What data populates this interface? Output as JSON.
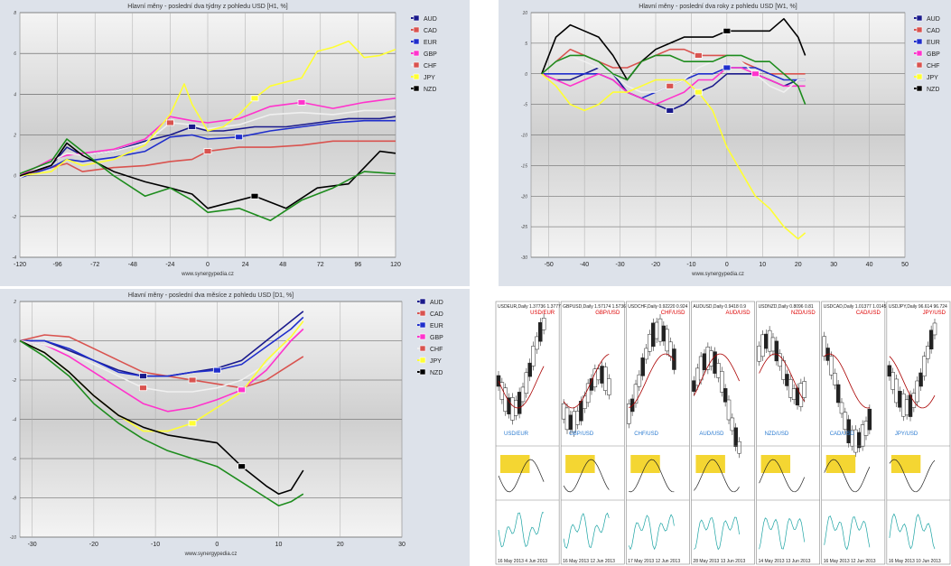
{
  "colors": {
    "AUD": "#1a1a8c",
    "CAD": "#d9534f",
    "EUR": "#1f2ecc",
    "GBP": "#ff33cc",
    "CHF": "#f0f0f0",
    "JPY": "#ffff33",
    "NZD": "#000000",
    "CHF_alt": "#e8e8e8",
    "green": "#1d8c1d"
  },
  "legend": [
    {
      "code": "AUD",
      "icon": "australia-flag-icon"
    },
    {
      "code": "CAD",
      "icon": "canada-flag-icon"
    },
    {
      "code": "EUR",
      "icon": "eu-flag-icon"
    },
    {
      "code": "GBP",
      "icon": "uk-flag-icon"
    },
    {
      "code": "CHF",
      "icon": "swiss-flag-icon"
    },
    {
      "code": "JPY",
      "icon": "japan-flag-icon"
    },
    {
      "code": "NZD",
      "icon": "new-zealand-flag-icon"
    }
  ],
  "credit": "www.synergypedia.cz",
  "chart_data": [
    {
      "type": "line",
      "title": "Hlavní měny - poslední dva týdny z pohledu USD [H1, %]",
      "xlim": [
        -120,
        120
      ],
      "xticks": [
        -120,
        -96,
        -72,
        -48,
        -24,
        0,
        24,
        48,
        72,
        96,
        120
      ],
      "ylim": [
        -4,
        8
      ],
      "yticks": [
        -4,
        -2,
        0,
        2,
        4,
        6,
        8
      ],
      "grid": true,
      "series": [
        {
          "name": "AUD",
          "color": "#1a1a8c",
          "x": [
            -120,
            -100,
            -90,
            -80,
            -60,
            -40,
            -24,
            -10,
            0,
            10,
            30,
            50,
            70,
            90,
            110,
            120
          ],
          "y": [
            0,
            0.5,
            1.4,
            1,
            1.2,
            1.7,
            2,
            2.4,
            2.2,
            2.2,
            2.4,
            2.4,
            2.6,
            2.8,
            2.8,
            2.9
          ]
        },
        {
          "name": "CAD",
          "color": "#d9534f",
          "x": [
            -120,
            -100,
            -90,
            -80,
            -60,
            -40,
            -24,
            -10,
            0,
            20,
            40,
            60,
            80,
            100,
            120
          ],
          "y": [
            0,
            0.4,
            0.6,
            0.2,
            0.4,
            0.5,
            0.7,
            0.8,
            1.2,
            1.4,
            1.4,
            1.5,
            1.7,
            1.7,
            1.7
          ]
        },
        {
          "name": "EUR",
          "color": "#1f2ecc",
          "x": [
            -120,
            -100,
            -90,
            -80,
            -60,
            -40,
            -24,
            -10,
            0,
            20,
            40,
            60,
            80,
            100,
            120
          ],
          "y": [
            -0.1,
            0.4,
            0.8,
            0.7,
            0.9,
            1.2,
            1.9,
            2.0,
            1.8,
            1.9,
            2.2,
            2.4,
            2.6,
            2.7,
            2.7
          ]
        },
        {
          "name": "GBP",
          "color": "#ff33cc",
          "x": [
            -120,
            -100,
            -90,
            -80,
            -60,
            -40,
            -24,
            -10,
            0,
            20,
            40,
            60,
            80,
            100,
            120
          ],
          "y": [
            0,
            0.8,
            1,
            1.1,
            1.3,
            1.8,
            2.9,
            2.7,
            2.6,
            2.8,
            3.4,
            3.6,
            3.3,
            3.6,
            3.8
          ]
        },
        {
          "name": "CHF",
          "color": "#f0f0f0",
          "x": [
            -120,
            -100,
            -90,
            -80,
            -60,
            -40,
            -24,
            -10,
            0,
            20,
            40,
            60,
            80,
            100,
            120
          ],
          "y": [
            -0.1,
            0.7,
            1.1,
            1,
            1.2,
            1.6,
            2.6,
            2.5,
            2.3,
            2.5,
            3.0,
            3.1,
            3.0,
            3.2,
            3.2
          ]
        },
        {
          "name": "JPY",
          "color": "#ffff33",
          "x": [
            -120,
            -100,
            -90,
            -80,
            -60,
            -40,
            -24,
            -15,
            -10,
            0,
            10,
            20,
            30,
            40,
            50,
            60,
            70,
            80,
            90,
            100,
            110,
            120
          ],
          "y": [
            0,
            0.2,
            0.8,
            0.5,
            0.8,
            1.5,
            3,
            4.5,
            3.5,
            2.2,
            2.4,
            3,
            3.8,
            4.4,
            4.6,
            4.8,
            6.1,
            6.3,
            6.6,
            5.8,
            5.9,
            6.2
          ]
        },
        {
          "name": "NZD",
          "color": "#000000",
          "x": [
            -120,
            -100,
            -90,
            -80,
            -60,
            -40,
            -24,
            -10,
            0,
            10,
            30,
            50,
            70,
            90,
            110,
            120
          ],
          "y": [
            0,
            0.5,
            1.6,
            1.0,
            0.2,
            -0.3,
            -0.6,
            -0.9,
            -1.6,
            -1.4,
            -1.0,
            -1.6,
            -0.6,
            -0.4,
            1.2,
            1.1
          ]
        },
        {
          "name": "",
          "color": "#1d8c1d",
          "x": [
            -120,
            -100,
            -90,
            -80,
            -60,
            -40,
            -24,
            -10,
            0,
            20,
            40,
            60,
            80,
            100,
            120
          ],
          "y": [
            0.1,
            0.7,
            1.8,
            1.2,
            0,
            -1,
            -0.6,
            -1.2,
            -1.8,
            -1.6,
            -2.2,
            -1.2,
            -0.6,
            0.2,
            0.1
          ]
        }
      ]
    },
    {
      "type": "line",
      "title": "Hlavní měny - poslední dva roky z pohledu USD [W1, %]",
      "xlim": [
        -55,
        50
      ],
      "xticks": [
        -50,
        -40,
        -30,
        -20,
        -10,
        0,
        10,
        20,
        30,
        40,
        50
      ],
      "ylim": [
        -30,
        10
      ],
      "yticks": [
        -30,
        -25,
        -20,
        -15,
        -10,
        -5,
        0,
        5,
        10
      ],
      "grid": true,
      "series": [
        {
          "name": "AUD",
          "color": "#1a1a8c",
          "x": [
            -52,
            -48,
            -44,
            -40,
            -36,
            -32,
            -28,
            -24,
            -20,
            -16,
            -12,
            -8,
            -4,
            0,
            4,
            8,
            12,
            16,
            20,
            22
          ],
          "y": [
            0,
            -1,
            -1,
            0,
            1,
            0,
            -3,
            -4,
            -5,
            -6,
            -5,
            -3,
            -2,
            0,
            0,
            0,
            -1,
            -2,
            -1,
            -1
          ]
        },
        {
          "name": "CAD",
          "color": "#d9534f",
          "x": [
            -52,
            -48,
            -44,
            -40,
            -36,
            -32,
            -28,
            -24,
            -20,
            -16,
            -12,
            -8,
            -4,
            0,
            4,
            8,
            12,
            16,
            20,
            22
          ],
          "y": [
            0,
            2,
            4,
            3,
            2,
            1,
            1,
            2,
            3,
            4,
            4,
            3,
            3,
            3,
            2,
            1,
            0,
            0,
            0,
            0
          ]
        },
        {
          "name": "EUR",
          "color": "#1f2ecc",
          "x": [
            -52,
            -48,
            -44,
            -40,
            -36,
            -32,
            -28,
            -24,
            -20,
            -16,
            -12,
            -8,
            -4,
            0,
            4,
            8,
            12,
            16,
            20,
            22
          ],
          "y": [
            0,
            0,
            0,
            0,
            0,
            -1,
            -3,
            -4,
            -3,
            -2,
            -1,
            0,
            0,
            1,
            1,
            1,
            0,
            -1,
            -1,
            -1
          ]
        },
        {
          "name": "GBP",
          "color": "#ff33cc",
          "x": [
            -52,
            -48,
            -44,
            -40,
            -36,
            -32,
            -28,
            -24,
            -20,
            -16,
            -12,
            -8,
            -4,
            0,
            4,
            8,
            12,
            16,
            20,
            22
          ],
          "y": [
            0,
            -1,
            -2,
            -1,
            0,
            -1,
            -3,
            -4,
            -5,
            -4,
            -3,
            -1,
            -1,
            1,
            1,
            0,
            -1,
            -2,
            -2,
            -2
          ]
        },
        {
          "name": "CHF",
          "color": "#f0f0f0",
          "x": [
            -52,
            -48,
            -44,
            -40,
            -36,
            -32,
            -28,
            -24,
            -20,
            -16,
            -12,
            -8,
            -4,
            0,
            4,
            8,
            12,
            16,
            20,
            22
          ],
          "y": [
            0,
            2,
            3,
            2,
            1,
            0,
            -2,
            -3,
            -3,
            -2,
            -1,
            1,
            2,
            3,
            2,
            0,
            -2,
            -3,
            -1,
            -1
          ]
        },
        {
          "name": "JPY",
          "color": "#ffff33",
          "x": [
            -52,
            -48,
            -44,
            -40,
            -36,
            -32,
            -28,
            -24,
            -20,
            -16,
            -12,
            -8,
            -4,
            0,
            4,
            8,
            12,
            16,
            20,
            22
          ],
          "y": [
            0,
            -2,
            -5,
            -6,
            -5,
            -3,
            -3,
            -2,
            -1,
            -1,
            -1,
            -3,
            -6,
            -12,
            -16,
            -20,
            -22,
            -25,
            -27,
            -26
          ]
        },
        {
          "name": "NZD",
          "color": "#000000",
          "x": [
            -52,
            -48,
            -44,
            -40,
            -36,
            -32,
            -28,
            -24,
            -20,
            -16,
            -12,
            -8,
            -4,
            0,
            4,
            8,
            12,
            16,
            20,
            22
          ],
          "y": [
            0,
            6,
            8,
            7,
            6,
            3,
            -1,
            2,
            4,
            5,
            6,
            6,
            6,
            7,
            7,
            7,
            7,
            9,
            6,
            3
          ]
        },
        {
          "name": "",
          "color": "#1d8c1d",
          "x": [
            -52,
            -48,
            -44,
            -40,
            -36,
            -32,
            -28,
            -24,
            -20,
            -16,
            -12,
            -8,
            -4,
            0,
            4,
            8,
            12,
            16,
            20,
            22
          ],
          "y": [
            0,
            2,
            3,
            3,
            2,
            0,
            -1,
            2,
            3,
            3,
            2,
            2,
            2,
            3,
            3,
            2,
            2,
            0,
            -2,
            -5
          ]
        }
      ]
    },
    {
      "type": "line",
      "title": "Hlavní měny - poslední dva měsíce z pohledu USD [D1, %]",
      "xlim": [
        -32,
        30
      ],
      "xticks": [
        -30,
        -20,
        -10,
        0,
        10,
        20,
        30
      ],
      "ylim": [
        -10,
        2
      ],
      "yticks": [
        -10,
        -8,
        -6,
        -4,
        -2,
        0,
        2
      ],
      "grid": true,
      "series": [
        {
          "name": "AUD",
          "color": "#1a1a8c",
          "x": [
            -32,
            -28,
            -24,
            -20,
            -16,
            -12,
            -8,
            -4,
            0,
            4,
            8,
            12,
            14
          ],
          "y": [
            0,
            0,
            -0.5,
            -1,
            -1.5,
            -1.8,
            -1.8,
            -1.6,
            -1.4,
            -1,
            0,
            1,
            1.5
          ]
        },
        {
          "name": "CAD",
          "color": "#d9534f",
          "x": [
            -32,
            -28,
            -24,
            -20,
            -16,
            -12,
            -8,
            -4,
            0,
            4,
            8,
            12,
            14
          ],
          "y": [
            0,
            0.3,
            0.2,
            -0.4,
            -1,
            -1.6,
            -1.8,
            -2,
            -2.2,
            -2.4,
            -2,
            -1.2,
            -0.8
          ]
        },
        {
          "name": "EUR",
          "color": "#1f2ecc",
          "x": [
            -32,
            -28,
            -24,
            -20,
            -16,
            -12,
            -8,
            -4,
            0,
            4,
            8,
            12,
            14
          ],
          "y": [
            0,
            0,
            -0.4,
            -1,
            -1.6,
            -1.8,
            -1.8,
            -1.6,
            -1.5,
            -1.2,
            -0.3,
            0.6,
            1.2
          ]
        },
        {
          "name": "GBP",
          "color": "#ff33cc",
          "x": [
            -32,
            -28,
            -24,
            -20,
            -16,
            -12,
            -8,
            -4,
            0,
            4,
            8,
            12,
            14
          ],
          "y": [
            0,
            -0.2,
            -0.8,
            -1.6,
            -2.4,
            -3.2,
            -3.6,
            -3.4,
            -3,
            -2.5,
            -1.5,
            0,
            0.6
          ]
        },
        {
          "name": "CHF",
          "color": "#f0f0f0",
          "x": [
            -32,
            -28,
            -24,
            -20,
            -16,
            -12,
            -8,
            -4,
            0,
            4,
            8,
            12,
            14
          ],
          "y": [
            0,
            -0.2,
            -0.6,
            -1.2,
            -1.8,
            -2.4,
            -2.6,
            -2.6,
            -2.4,
            -2.0,
            -1.2,
            0.2,
            0.8
          ]
        },
        {
          "name": "JPY",
          "color": "#ffff33",
          "x": [
            -32,
            -28,
            -24,
            -20,
            -16,
            -12,
            -8,
            -4,
            0,
            4,
            8,
            12,
            14
          ],
          "y": [
            0,
            -0.6,
            -1.6,
            -2.8,
            -3.8,
            -4.6,
            -4.6,
            -4.2,
            -3.4,
            -2.6,
            -1,
            0.2,
            1
          ]
        },
        {
          "name": "NZD",
          "color": "#000000",
          "x": [
            -32,
            -28,
            -24,
            -20,
            -16,
            -12,
            -8,
            -4,
            0,
            4,
            8,
            10,
            12,
            14
          ],
          "y": [
            0,
            -0.6,
            -1.6,
            -2.8,
            -3.8,
            -4.4,
            -4.8,
            -5,
            -5.2,
            -6.4,
            -7.4,
            -7.8,
            -7.6,
            -6.6
          ]
        },
        {
          "name": "",
          "color": "#1d8c1d",
          "x": [
            -32,
            -28,
            -24,
            -20,
            -16,
            -12,
            -8,
            -4,
            0,
            4,
            8,
            10,
            12,
            14
          ],
          "y": [
            0,
            -0.8,
            -1.8,
            -3.2,
            -4.2,
            -5,
            -5.6,
            -6,
            -6.4,
            -7.2,
            -8,
            -8.4,
            -8.2,
            -7.8
          ]
        }
      ]
    }
  ],
  "mt4_panes": [
    {
      "header": "USDEUR,Daily 1.37736 1.37771 1.37",
      "symbol": "USD/EUR",
      "footer": "16 May 2013   4 Jun 2013"
    },
    {
      "header": "GBPUSD,Daily 1.57174 1.57363",
      "symbol": "GBP/USD",
      "footer": "16 May 2013   12 Jun 2013"
    },
    {
      "header": "USDCHF,Daily 0.92220 0.924",
      "symbol": "CHF/USD",
      "footer": "17 May 2013   12 Jun 2013"
    },
    {
      "header": "AUDUSD,Daily 0.9418 0.9",
      "symbol": "AUD/USD",
      "footer": "28 May 2013   13 Jun 2013"
    },
    {
      "header": "USDNZD,Daily 0.8096 0.81",
      "symbol": "NZD/USD",
      "footer": "14 May 2013   13 Jun 2013"
    },
    {
      "header": "USDCAD,Daily 1.01377 1.0145",
      "symbol": "CAD/USD",
      "footer": "16 May 2013   12 Jun 2013"
    },
    {
      "header": "USDJPY,Daily 96.614 96.724",
      "symbol": "JPY/USD",
      "footer": "16 May 2013   10 Jun 2013"
    }
  ]
}
